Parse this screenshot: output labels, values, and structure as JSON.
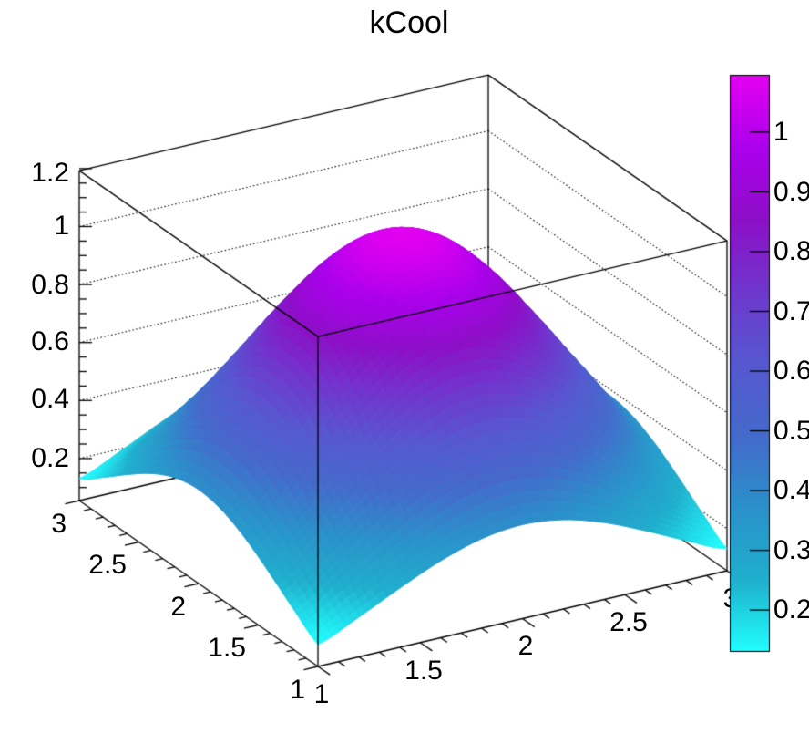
{
  "title": {
    "text": "kCool"
  },
  "chart_data": {
    "type": "surface",
    "title": "kCool",
    "style": "ROOT SURF2 with color palette",
    "x_range": [
      1,
      3
    ],
    "y_range": [
      1,
      3
    ],
    "z_min": 0.131,
    "z_max": 1.096,
    "z_axis_top": 1.2,
    "x_tick_values": [
      1,
      1.5,
      2,
      2.5,
      3
    ],
    "x_tick_labels": [
      "1",
      "1.5",
      "2",
      "2.5",
      "3"
    ],
    "y_tick_values": [
      3,
      2.5,
      2,
      1.5,
      1
    ],
    "y_tick_labels": [
      "3",
      "2.5",
      "2",
      "1.5",
      "1"
    ],
    "z_tick_values": [
      1.2,
      1,
      0.8,
      0.6,
      0.4,
      0.2
    ],
    "z_tick_labels": [
      "1.2",
      "1",
      "0.8",
      "0.6",
      "0.4",
      "0.2"
    ],
    "minor_tick_step_xy": 0.1,
    "minor_tick_step_z": 0.05,
    "grid": "dotted z-gridlines on back walls",
    "colorbar": {
      "tick_values": [
        1,
        0.9,
        0.8,
        0.7,
        0.6,
        0.5,
        0.4,
        0.3,
        0.2
      ],
      "tick_labels": [
        "1",
        "0.9",
        "0.8",
        "0.7",
        "0.6",
        "0.5",
        "0.4",
        "0.3",
        "0.2"
      ],
      "value_min": 0.13,
      "value_max": 1.096
    },
    "palette": {
      "name": "kCool",
      "stops": [
        "#21FFFF",
        "#1FAFCD",
        "#2A91CA",
        "#446ACB",
        "#5658D0",
        "#6F37CD",
        "#8D0FC7",
        "#AC00ED",
        "#E300F0"
      ]
    },
    "line_color": "#000000",
    "background_color": "#ffffff",
    "surface_grid": {
      "x": [
        1,
        1.2,
        1.4,
        1.6,
        1.8,
        2,
        2.2,
        2.4,
        2.6,
        2.8,
        3
      ],
      "y": [
        1,
        1.2,
        1.4,
        1.6,
        1.8,
        2,
        2.2,
        2.4,
        2.6,
        2.8,
        3
      ],
      "z": [
        [
          0.131,
          0.192,
          0.259,
          0.32,
          0.363,
          0.379,
          0.363,
          0.32,
          0.259,
          0.192,
          0.131
        ],
        [
          0.192,
          0.282,
          0.379,
          0.469,
          0.532,
          0.556,
          0.532,
          0.469,
          0.379,
          0.282,
          0.192
        ],
        [
          0.259,
          0.379,
          0.51,
          0.631,
          0.717,
          0.748,
          0.717,
          0.631,
          0.51,
          0.379,
          0.259
        ],
        [
          0.32,
          0.469,
          0.631,
          0.78,
          0.886,
          0.925,
          0.886,
          0.78,
          0.631,
          0.469,
          0.32
        ],
        [
          0.363,
          0.532,
          0.717,
          0.886,
          1.007,
          1.05,
          1.007,
          0.886,
          0.717,
          0.532,
          0.363
        ],
        [
          0.379,
          0.556,
          0.748,
          0.925,
          1.05,
          1.096,
          1.05,
          0.925,
          0.748,
          0.556,
          0.379
        ],
        [
          0.363,
          0.532,
          0.717,
          0.886,
          1.007,
          1.05,
          1.007,
          0.886,
          0.717,
          0.532,
          0.363
        ],
        [
          0.32,
          0.469,
          0.631,
          0.78,
          0.886,
          0.925,
          0.886,
          0.78,
          0.631,
          0.469,
          0.32
        ],
        [
          0.259,
          0.379,
          0.51,
          0.631,
          0.717,
          0.748,
          0.717,
          0.631,
          0.51,
          0.379,
          0.259
        ],
        [
          0.192,
          0.282,
          0.379,
          0.469,
          0.532,
          0.556,
          0.532,
          0.469,
          0.379,
          0.282,
          0.192
        ],
        [
          0.131,
          0.192,
          0.259,
          0.32,
          0.363,
          0.379,
          0.363,
          0.32,
          0.259,
          0.192,
          0.131
        ]
      ]
    }
  }
}
